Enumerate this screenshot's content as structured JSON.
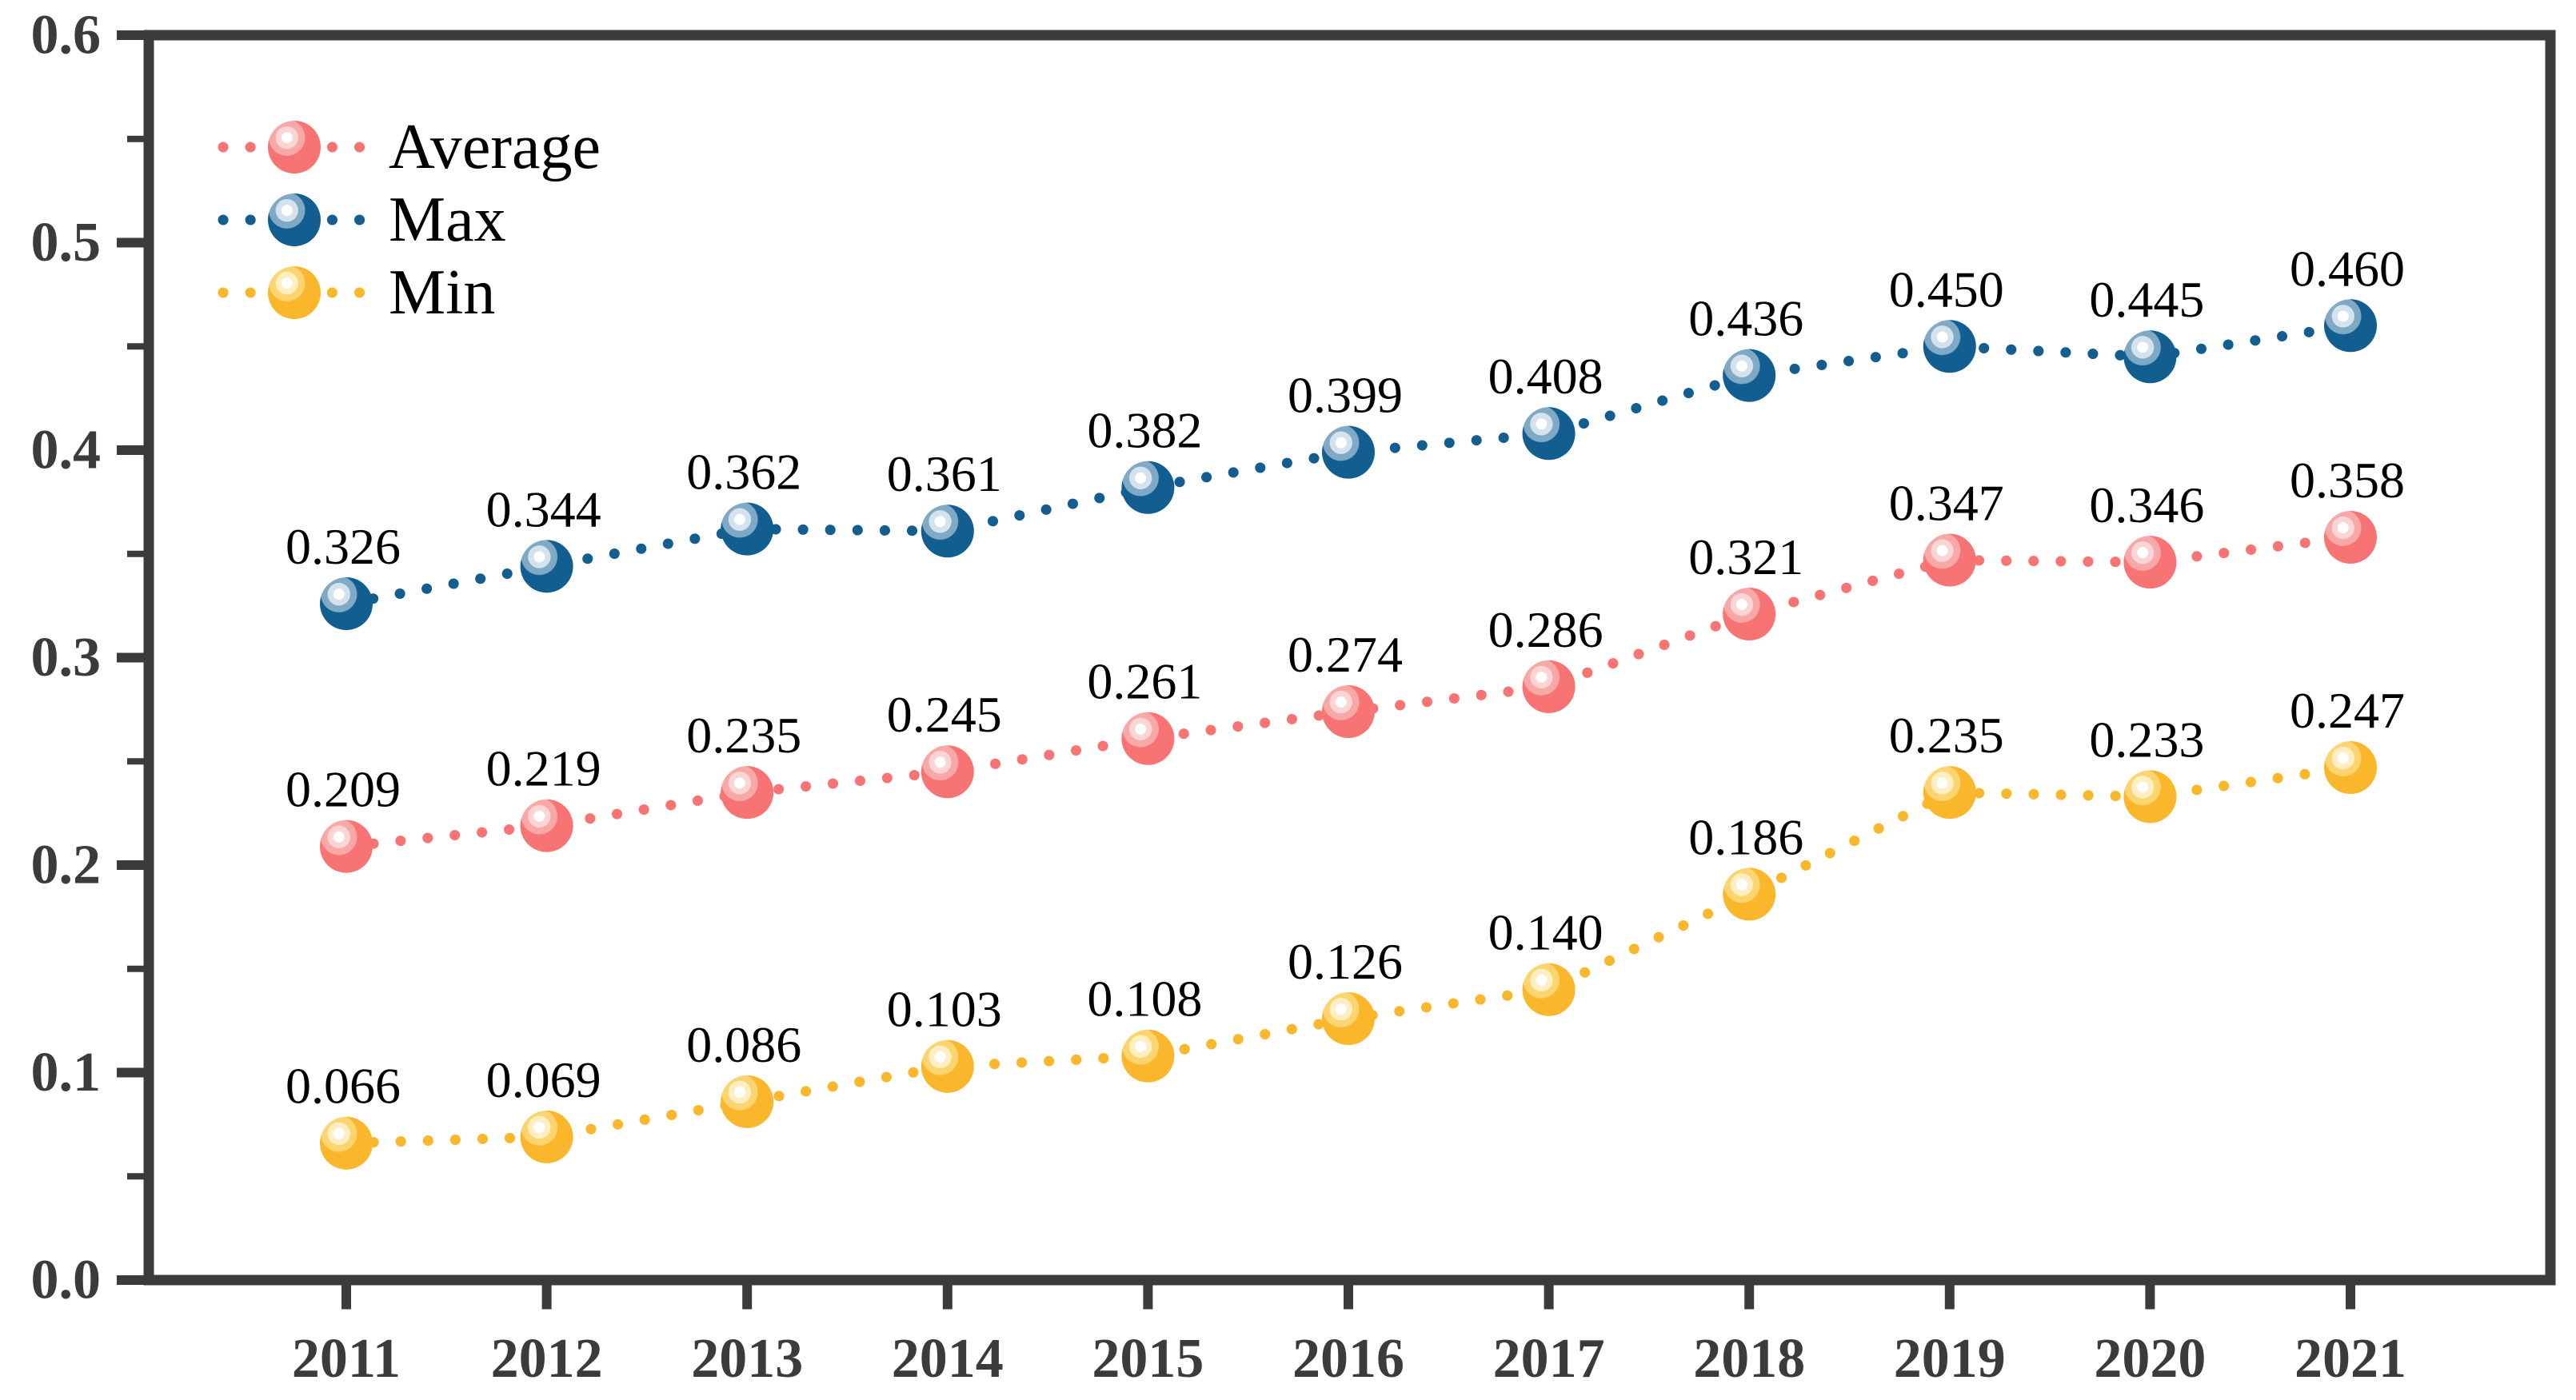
{
  "page": {
    "background": "#ffffff"
  },
  "chart_data": {
    "type": "line",
    "title": "",
    "xlabel": "",
    "ylabel": "",
    "categories": [
      "2011",
      "2012",
      "2013",
      "2014",
      "2015",
      "2016",
      "2017",
      "2018",
      "2019",
      "2020",
      "2021"
    ],
    "series": [
      {
        "name": "Average",
        "color": "#F87373",
        "highlight_mid": "#F9A8A8",
        "highlight_light": "#FBD4D4",
        "values": [
          0.209,
          0.219,
          0.235,
          0.245,
          0.261,
          0.274,
          0.286,
          0.321,
          0.347,
          0.346,
          0.358
        ],
        "labels": [
          "0.209",
          "0.219",
          "0.235",
          "0.245",
          "0.261",
          "0.274",
          "0.286",
          "0.321",
          "0.347",
          "0.346",
          "0.358"
        ]
      },
      {
        "name": "Max",
        "color": "#125E90",
        "highlight_mid": "#7FA9C4",
        "highlight_light": "#D3E2EC",
        "values": [
          0.326,
          0.344,
          0.362,
          0.361,
          0.382,
          0.399,
          0.408,
          0.436,
          0.45,
          0.445,
          0.46
        ],
        "labels": [
          "0.326",
          "0.344",
          "0.362",
          "0.361",
          "0.382",
          "0.399",
          "0.408",
          "0.436",
          "0.450",
          "0.445",
          "0.460"
        ]
      },
      {
        "name": "Min",
        "color": "#FBB72C",
        "highlight_mid": "#FCD470",
        "highlight_light": "#FEEFC3",
        "values": [
          0.066,
          0.069,
          0.086,
          0.103,
          0.108,
          0.126,
          0.14,
          0.186,
          0.235,
          0.233,
          0.247
        ],
        "labels": [
          "0.066",
          "0.069",
          "0.086",
          "0.103",
          "0.108",
          "0.126",
          "0.140",
          "0.186",
          "0.235",
          "0.233",
          "0.247"
        ]
      }
    ],
    "ylim": [
      0.0,
      0.6
    ],
    "yticks": [
      0.0,
      0.1,
      0.2,
      0.3,
      0.4,
      0.5,
      0.6
    ],
    "ytick_labels": [
      "0.0",
      "0.1",
      "0.2",
      "0.3",
      "0.4",
      "0.5",
      "0.6"
    ],
    "minor_ytick_step": 0.05,
    "grid": false,
    "line_style": "dotted",
    "marker_style": "glossy-sphere",
    "value_labels_shown": true,
    "legend": {
      "position": "top-left",
      "entries": [
        "Average",
        "Max",
        "Min"
      ]
    },
    "axis_color": "#3B3B3B",
    "value_label_color": "#000000",
    "legend_text_color": "#000000"
  }
}
